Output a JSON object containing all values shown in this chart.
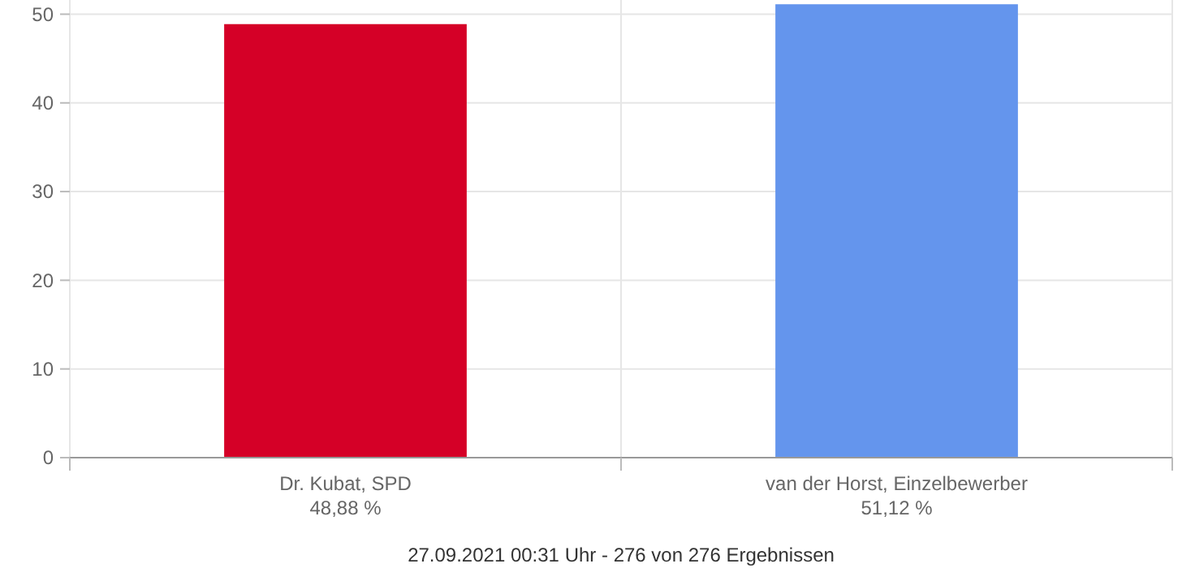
{
  "chart_data": {
    "type": "bar",
    "categories": [
      "Dr. Kubat, SPD",
      "van der Horst, Einzelbewerber"
    ],
    "values": [
      48.88,
      51.12
    ],
    "colors": [
      "#d50027",
      "#6495ed"
    ],
    "value_labels": [
      "48,88 %",
      "51,12 %"
    ],
    "ylim": [
      0,
      51.6
    ],
    "yticks": [
      0,
      10,
      20,
      30,
      40,
      50
    ],
    "grid": true,
    "annotations": [
      "27.09.2021 00:31 Uhr - 276 von 276 Ergebnissen"
    ]
  }
}
